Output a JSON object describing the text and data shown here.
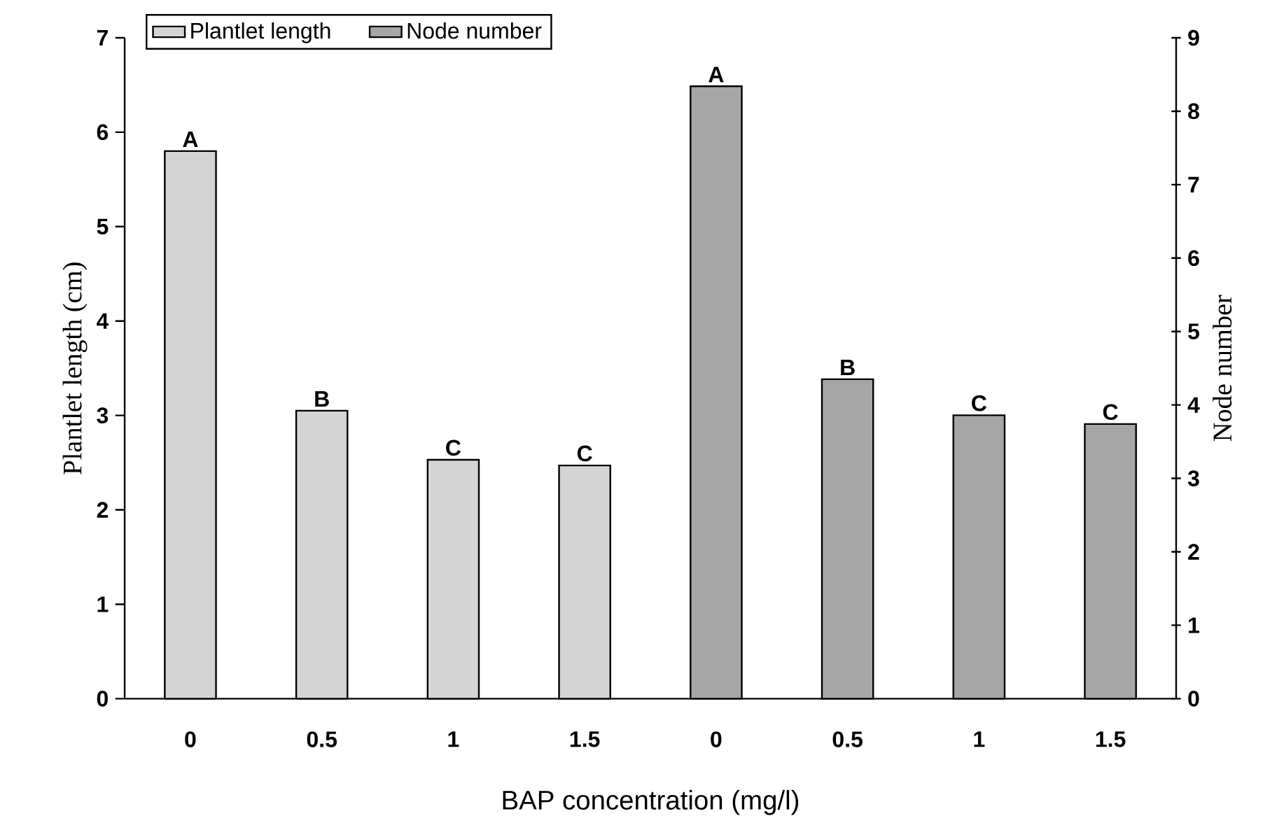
{
  "chart_data": {
    "type": "bar",
    "categories": [
      "0",
      "0.5",
      "1",
      "1.5",
      "0",
      "0.5",
      "1",
      "1.5"
    ],
    "series": [
      {
        "name": "Plantlet length",
        "color": "#d4d4d4",
        "values": [
          5.8,
          3.05,
          2.53,
          2.47,
          null,
          null,
          null,
          null
        ],
        "value_labels": [
          "A",
          "B",
          "C",
          "C",
          null,
          null,
          null,
          null
        ]
      },
      {
        "name": "Node number",
        "color": "#a6a6a6",
        "axis": "y2",
        "values": [
          null,
          null,
          null,
          null,
          8.34,
          4.35,
          3.86,
          3.74
        ],
        "value_labels": [
          null,
          null,
          null,
          null,
          "A",
          "B",
          "C",
          "C"
        ]
      }
    ],
    "xlabel": "BAP concentration (mg/l)",
    "ylabel": "Plantlet length (cm)",
    "y2label": "Node number",
    "ylim": [
      0,
      7
    ],
    "yticks": [
      0,
      1,
      2,
      3,
      4,
      5,
      6,
      7
    ],
    "y2lim": [
      0,
      9
    ],
    "y2ticks": [
      0,
      1,
      2,
      3,
      4,
      5,
      6,
      7,
      8,
      9
    ],
    "legend": "top",
    "grid": false
  }
}
